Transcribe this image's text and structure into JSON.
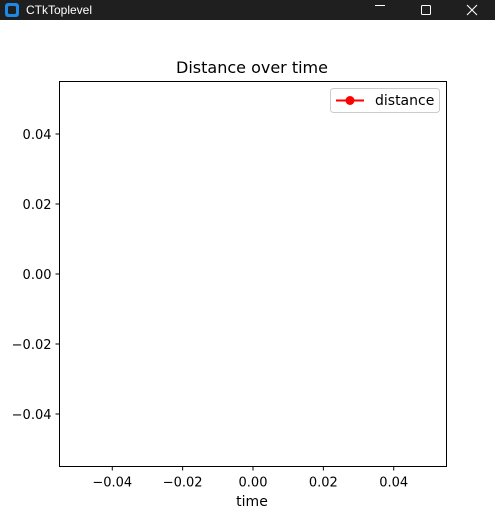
{
  "window": {
    "title": "CTkToplevel",
    "controls": [
      "minimize-icon",
      "maximize-icon",
      "close-icon"
    ]
  },
  "colors": {
    "titlebar_bg": "#1f1f1f",
    "app_icon": "#1e88e5",
    "series_color": "#ff0000"
  },
  "chart_data": {
    "type": "line",
    "title": "Distance over time",
    "xlabel": "time",
    "ylabel": "",
    "xlim": [
      -0.055,
      0.055
    ],
    "ylim": [
      -0.055,
      0.055
    ],
    "xticks": [
      -0.04,
      -0.02,
      0.0,
      0.02,
      0.04
    ],
    "yticks": [
      -0.04,
      -0.02,
      0.0,
      0.02,
      0.04
    ],
    "xtick_labels": [
      "−0.04",
      "−0.02",
      "0.00",
      "0.02",
      "0.04"
    ],
    "ytick_labels": [
      "−0.04",
      "−0.02",
      "0.00",
      "0.02",
      "0.04"
    ],
    "grid": false,
    "legend_position": "top-right",
    "series": [
      {
        "name": "distance",
        "color": "#ff0000",
        "marker": "circle",
        "x": [],
        "y": []
      }
    ]
  }
}
